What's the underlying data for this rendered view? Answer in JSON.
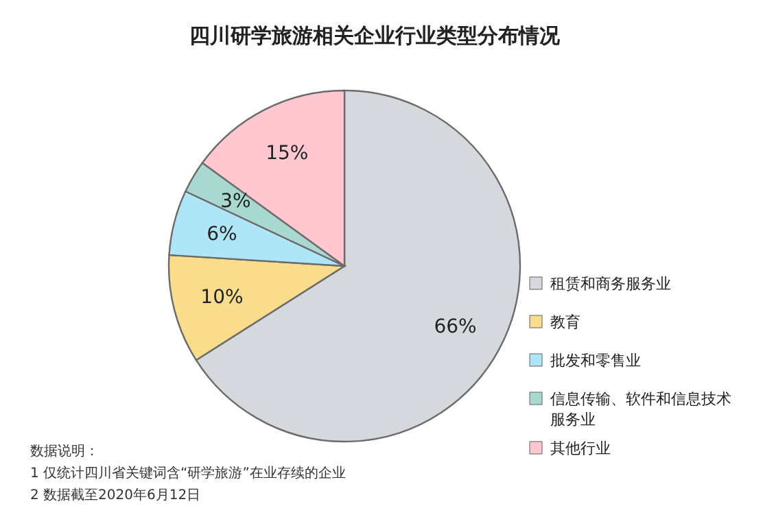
{
  "chart_data": {
    "type": "pie",
    "title": "四川研学旅游相关企业行业类型分布情况",
    "categories": [
      "租赁和商务服务业",
      "教育",
      "批发和零售业",
      "信息传输、软件和信息技术服务业",
      "其他行业"
    ],
    "values": [
      66,
      10,
      6,
      3,
      15
    ],
    "colors": [
      "#d5d8dd",
      "#f9dc8c",
      "#aee6f8",
      "#a8d8cf",
      "#ffc8d0"
    ],
    "value_labels": [
      "66%",
      "10%",
      "6%",
      "3%",
      "15%"
    ],
    "legend": "right",
    "annotations": [
      "数据说明：",
      "1 仅统计四川省关键词含“研学旅游”在业存续的企业",
      "2 数据截至2020年6月12日"
    ]
  }
}
